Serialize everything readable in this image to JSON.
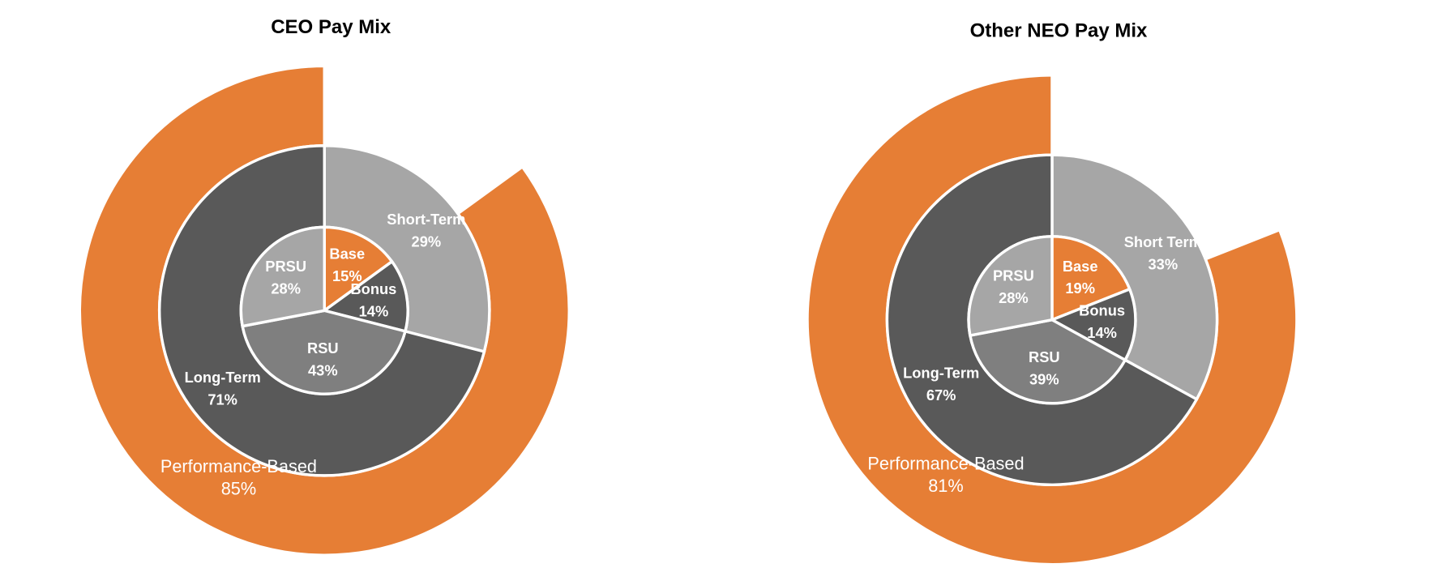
{
  "chart_data": [
    {
      "type": "nested-pie",
      "title": "CEO Pay Mix",
      "rings": [
        {
          "categories": [
            "Base",
            "Bonus",
            "RSU",
            "PRSU"
          ],
          "values": [
            15,
            14,
            43,
            28
          ],
          "value_labels": [
            "15%",
            "14%",
            "43%",
            "28%"
          ],
          "colors": [
            "#e67e35",
            "#595959",
            "#7f7f7f",
            "#a6a6a6"
          ]
        },
        {
          "categories": [
            "Short-Term",
            "Long-Term"
          ],
          "values": [
            29,
            71
          ],
          "value_labels": [
            "29%",
            "71%"
          ],
          "colors": [
            "#a6a6a6",
            "#595959"
          ]
        },
        {
          "categories": [
            "Performance-Based"
          ],
          "values": [
            85
          ],
          "value_labels": [
            "85%"
          ],
          "colors": [
            "#e67e35"
          ]
        }
      ]
    },
    {
      "type": "nested-pie",
      "title": "Other NEO Pay Mix",
      "rings": [
        {
          "categories": [
            "Base",
            "Bonus",
            "RSU",
            "PRSU"
          ],
          "values": [
            19,
            14,
            39,
            28
          ],
          "value_labels": [
            "19%",
            "14%",
            "39%",
            "28%"
          ],
          "colors": [
            "#e67e35",
            "#595959",
            "#7f7f7f",
            "#a6a6a6"
          ]
        },
        {
          "categories": [
            "Short Term",
            "Long-Term"
          ],
          "values": [
            33,
            67
          ],
          "value_labels": [
            "33%",
            "67%"
          ],
          "colors": [
            "#a6a6a6",
            "#595959"
          ]
        },
        {
          "categories": [
            "Performance-Based"
          ],
          "values": [
            81
          ],
          "value_labels": [
            "81%"
          ],
          "colors": [
            "#e67e35"
          ]
        }
      ]
    }
  ]
}
